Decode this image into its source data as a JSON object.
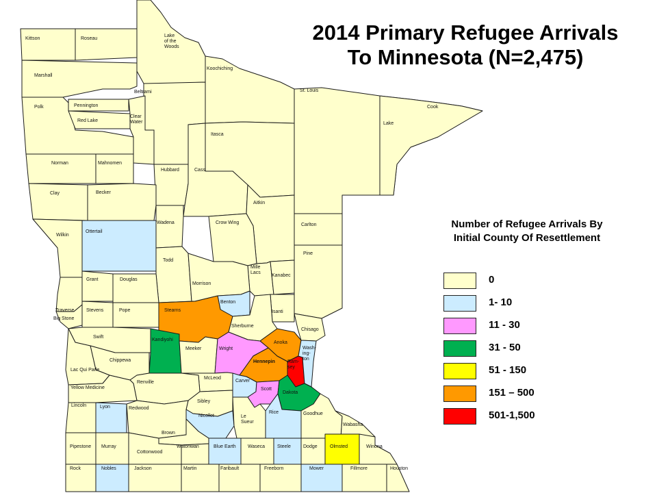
{
  "title_line1": "2014 Primary Refugee Arrivals",
  "title_line2": "To Minnesota (N=2,475)",
  "legend": {
    "title_line1": "Number of Refugee Arrivals By",
    "title_line2": "Initial County Of Resettlement",
    "items": [
      {
        "label": "0",
        "color": "#FFFFCC"
      },
      {
        "label": "1- 10",
        "color": "#CCECFF"
      },
      {
        "label": "11 - 30",
        "color": "#FF99FF"
      },
      {
        "label": "31 - 50",
        "color": "#00B050"
      },
      {
        "label": "51 - 150",
        "color": "#FFFF00"
      },
      {
        "label": "151 – 500",
        "color": "#FF9900"
      },
      {
        "label": "501-1,500",
        "color": "#FF0000"
      }
    ]
  },
  "counties": [
    {
      "name": "Kittson",
      "category": 0
    },
    {
      "name": "Roseau",
      "category": 0
    },
    {
      "name": "Lake of the Woods",
      "category": 0
    },
    {
      "name": "Marshall",
      "category": 0
    },
    {
      "name": "Koochiching",
      "category": 0
    },
    {
      "name": "Beltrami",
      "category": 0
    },
    {
      "name": "St. Louis",
      "category": 0
    },
    {
      "name": "Cook",
      "category": 0
    },
    {
      "name": "Lake",
      "category": 0
    },
    {
      "name": "Polk",
      "category": 0
    },
    {
      "name": "Pennington",
      "category": 0
    },
    {
      "name": "Red Lake",
      "category": 0
    },
    {
      "name": "Clear Water",
      "category": 0
    },
    {
      "name": "Itasca",
      "category": 0
    },
    {
      "name": "Norman",
      "category": 0
    },
    {
      "name": "Mahnomen",
      "category": 0
    },
    {
      "name": "Hubbard",
      "category": 0
    },
    {
      "name": "Cass",
      "category": 0
    },
    {
      "name": "Clay",
      "category": 0
    },
    {
      "name": "Becker",
      "category": 0
    },
    {
      "name": "Aitkin",
      "category": 0
    },
    {
      "name": "Carlton",
      "category": 0
    },
    {
      "name": "Wilkin",
      "category": 0
    },
    {
      "name": "Ottertail",
      "category": 1
    },
    {
      "name": "Wadena",
      "category": 0
    },
    {
      "name": "Crow Wing",
      "category": 0
    },
    {
      "name": "Pine",
      "category": 0
    },
    {
      "name": "Todd",
      "category": 0
    },
    {
      "name": "Mille Lacs",
      "category": 0
    },
    {
      "name": "Kanabec",
      "category": 0
    },
    {
      "name": "Grant",
      "category": 0
    },
    {
      "name": "Douglas",
      "category": 0
    },
    {
      "name": "Morrison",
      "category": 0
    },
    {
      "name": "Benton",
      "category": 1
    },
    {
      "name": "Traverse",
      "category": 0
    },
    {
      "name": "Big Stone",
      "category": 0
    },
    {
      "name": "Stevens",
      "category": 0
    },
    {
      "name": "Pope",
      "category": 0
    },
    {
      "name": "Stearns",
      "category": 5
    },
    {
      "name": "Isanti",
      "category": 0
    },
    {
      "name": "Sherburne",
      "category": 0
    },
    {
      "name": "Chisago",
      "category": 0
    },
    {
      "name": "Swift",
      "category": 0
    },
    {
      "name": "Kandiyohi",
      "category": 3
    },
    {
      "name": "Anoka",
      "category": 5
    },
    {
      "name": "Meeker",
      "category": 0
    },
    {
      "name": "Wright",
      "category": 2
    },
    {
      "name": "Hennepin",
      "category": 5
    },
    {
      "name": "Ramsey",
      "category": 6
    },
    {
      "name": "Washington",
      "category": 1
    },
    {
      "name": "Chippewa",
      "category": 0
    },
    {
      "name": "Lac Qui Parle",
      "category": 0
    },
    {
      "name": "McLeod",
      "category": 0
    },
    {
      "name": "Carver",
      "category": 1
    },
    {
      "name": "Renville",
      "category": 0
    },
    {
      "name": "Scott",
      "category": 2
    },
    {
      "name": "Dakota",
      "category": 3
    },
    {
      "name": "Yellow Medicine",
      "category": 0
    },
    {
      "name": "Sibley",
      "category": 0
    },
    {
      "name": "Lincoln",
      "category": 0
    },
    {
      "name": "Lyon",
      "category": 1
    },
    {
      "name": "Redwood",
      "category": 0
    },
    {
      "name": "Nicollet",
      "category": 1
    },
    {
      "name": "Le Sueur",
      "category": 0
    },
    {
      "name": "Rice",
      "category": 1
    },
    {
      "name": "Goodhue",
      "category": 0
    },
    {
      "name": "Brown",
      "category": 0
    },
    {
      "name": "Wabasha",
      "category": 0
    },
    {
      "name": "Pipestone",
      "category": 0
    },
    {
      "name": "Murray",
      "category": 0
    },
    {
      "name": "Cottonwood",
      "category": 0
    },
    {
      "name": "Watonwan",
      "category": 0
    },
    {
      "name": "Blue Earth",
      "category": 1
    },
    {
      "name": "Waseca",
      "category": 0
    },
    {
      "name": "Steele",
      "category": 1
    },
    {
      "name": "Dodge",
      "category": 0
    },
    {
      "name": "Olmsted",
      "category": 4
    },
    {
      "name": "Winona",
      "category": 0
    },
    {
      "name": "Rock",
      "category": 0
    },
    {
      "name": "Nobles",
      "category": 1
    },
    {
      "name": "Jackson",
      "category": 0
    },
    {
      "name": "Martin",
      "category": 0
    },
    {
      "name": "Faribault",
      "category": 0
    },
    {
      "name": "Freeborn",
      "category": 0
    },
    {
      "name": "Mower",
      "category": 1
    },
    {
      "name": "Fillmore",
      "category": 0
    },
    {
      "name": "Houston",
      "category": 0
    }
  ]
}
